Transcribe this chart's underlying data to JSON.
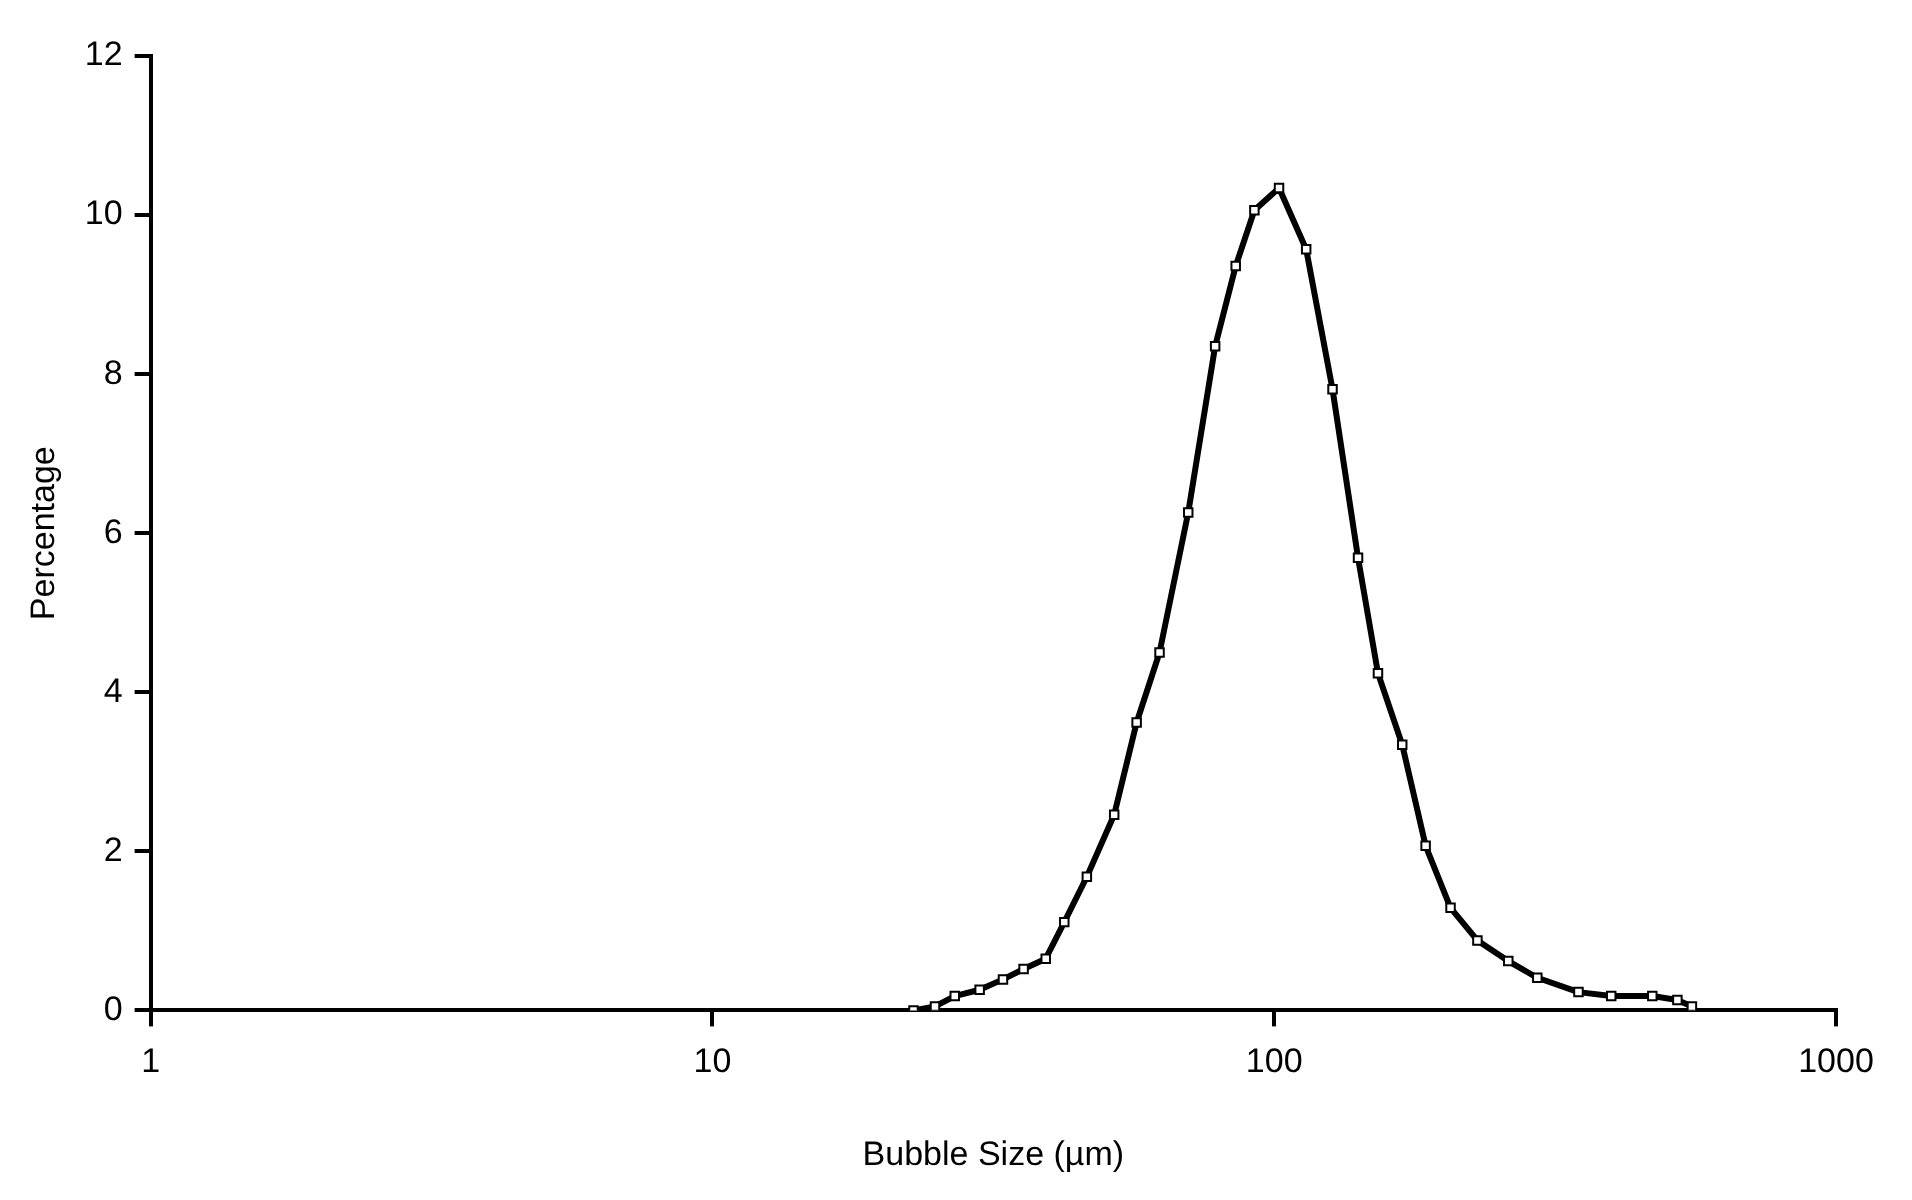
{
  "chart_data": {
    "type": "line",
    "xlabel": "Bubble Size (µm)",
    "ylabel": "Percentage",
    "log": "x",
    "xlim": [
      1,
      1000
    ],
    "xticks": [
      1,
      10,
      100,
      1000
    ],
    "ylim": [
      0,
      12
    ],
    "yticks": [
      0,
      2,
      4,
      6,
      8,
      10,
      12
    ],
    "grid": false,
    "legend": false,
    "marker": "square",
    "line_style": "solid",
    "series": [
      {
        "color": "#000000",
        "x": [
          22.8,
          24.9,
          27.0,
          29.9,
          32.9,
          35.8,
          39.2,
          42.3,
          46.4,
          51.9,
          56.9,
          62.5,
          70.3,
          78.5,
          85.4,
          92.2,
          102,
          114,
          127,
          141,
          153,
          169,
          186,
          206,
          230,
          261,
          294,
          348,
          398,
          471,
          522,
          554
        ],
        "values": [
          0,
          0.05,
          0.18,
          0.26,
          0.39,
          0.52,
          0.65,
          1.11,
          1.68,
          2.46,
          3.62,
          4.5,
          6.26,
          8.35,
          9.36,
          10.06,
          10.34,
          9.57,
          7.81,
          5.69,
          4.24,
          3.34,
          2.07,
          1.29,
          0.88,
          0.62,
          0.41,
          0.23,
          0.18,
          0.18,
          0.13,
          0.05
        ]
      }
    ]
  }
}
